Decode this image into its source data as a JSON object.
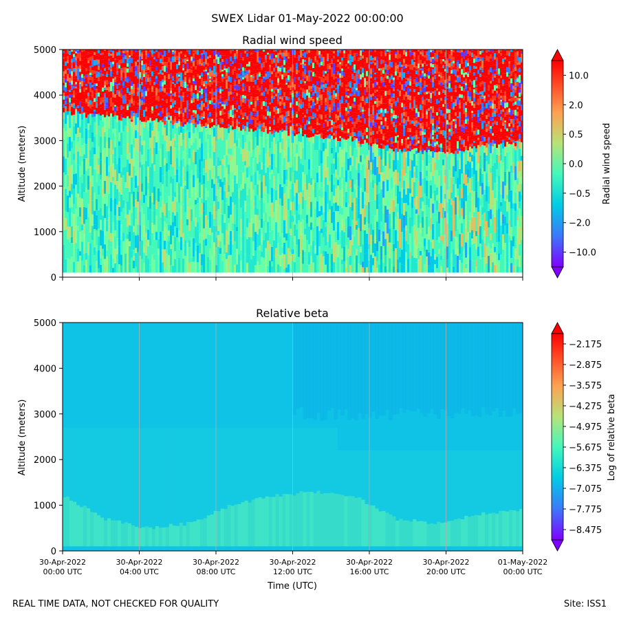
{
  "figure_title": "SWEX Lidar 01-May-2022 00:00:00",
  "footer_left": "REAL TIME DATA, NOT CHECKED FOR QUALITY",
  "footer_right": "Site: ISS1",
  "chart_data": [
    {
      "type": "heatmap",
      "title": "Radial wind speed",
      "ylabel": "Altitude (meters)",
      "xlabel": "",
      "ylim": [
        0,
        5000
      ],
      "yticks": [
        "0",
        "1000",
        "2000",
        "3000",
        "4000",
        "5000"
      ],
      "xticks": [],
      "colorbar_label": "Radial wind speed",
      "colorbar_ticks": [
        "10.0",
        "2.0",
        "0.5",
        "0.0",
        "−0.5",
        "−2.0",
        "−10.0"
      ],
      "cloud_top_altitude_m": [
        3600,
        3520,
        3450,
        3350,
        3280,
        3200,
        3100,
        3000,
        2800,
        2700,
        2850,
        2950
      ],
      "colors": {
        "level_colors": [
          "#7f00ff",
          "#5a3cff",
          "#3c78fb",
          "#1fa8f0",
          "#00cce5",
          "#22e8d0",
          "#44f8bb",
          "#69ffa6",
          "#90f791",
          "#b8e278",
          "#ddc163",
          "#ff9d4f",
          "#ff6c38",
          "#ff3a1f",
          "#ff0000"
        ]
      }
    },
    {
      "type": "heatmap",
      "title": "Relative beta",
      "ylabel": "Altitude (meters)",
      "xlabel": "Time (UTC)",
      "ylim": [
        0,
        5000
      ],
      "yticks": [
        "0",
        "1000",
        "2000",
        "3000",
        "4000",
        "5000"
      ],
      "xticks": [
        [
          "30-Apr-2022",
          "00:00 UTC"
        ],
        [
          "30-Apr-2022",
          "04:00 UTC"
        ],
        [
          "30-Apr-2022",
          "08:00 UTC"
        ],
        [
          "30-Apr-2022",
          "12:00 UTC"
        ],
        [
          "30-Apr-2022",
          "16:00 UTC"
        ],
        [
          "30-Apr-2022",
          "20:00 UTC"
        ],
        [
          "01-May-2022",
          "00:00 UTC"
        ]
      ],
      "colorbar_label": "Log of relative beta",
      "colorbar_ticks": [
        "−2.175",
        "−2.875",
        "−3.575",
        "−4.275",
        "−4.975",
        "−5.675",
        "−6.375",
        "−7.075",
        "−7.775",
        "−8.475"
      ],
      "boundary_layer_top_altitude_m": [
        1200,
        700,
        500,
        600,
        1000,
        1200,
        1300,
        1200,
        700,
        600,
        800,
        900
      ]
    }
  ]
}
